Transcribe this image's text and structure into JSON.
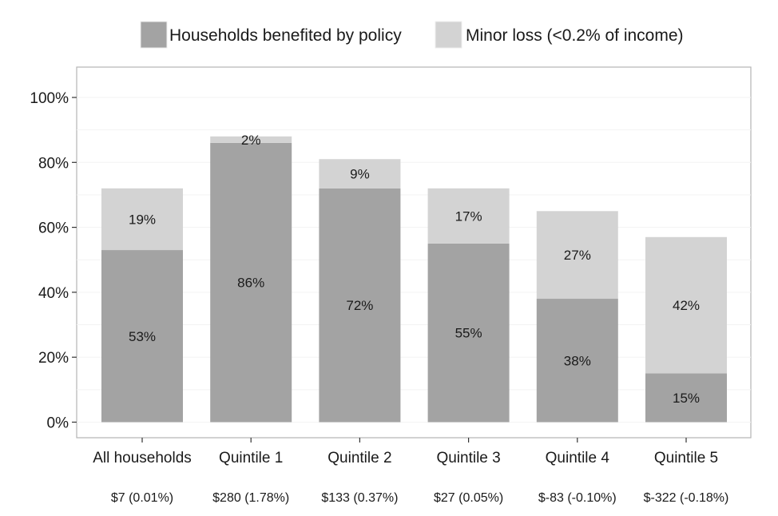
{
  "chart_data": {
    "type": "bar",
    "stacked": true,
    "categories": [
      "All households",
      "Quintile 1",
      "Quintile 2",
      "Quintile 3",
      "Quintile 4",
      "Quintile 5"
    ],
    "subtitles": [
      "$7 (0.01%)",
      "$280 (1.78%)",
      "$133 (0.37%)",
      "$27 (0.05%)",
      "$-83 (-0.10%)",
      "$-322 (-0.18%)"
    ],
    "series": [
      {
        "name": "Households benefited by policy",
        "color": "#a3a3a3",
        "values": [
          53,
          86,
          72,
          55,
          38,
          15
        ],
        "labels": [
          "53%",
          "86%",
          "72%",
          "55%",
          "38%",
          "15%"
        ]
      },
      {
        "name": "Minor loss (<0.2% of income)",
        "color": "#d3d3d3",
        "values": [
          19,
          2,
          9,
          17,
          27,
          42
        ],
        "labels": [
          "19%",
          "2%",
          "9%",
          "17%",
          "27%",
          "42%"
        ]
      }
    ],
    "ylim": [
      0,
      100
    ],
    "yticks": [
      0,
      20,
      40,
      60,
      80,
      100
    ],
    "ytick_labels": [
      "0%",
      "20%",
      "40%",
      "60%",
      "80%",
      "100%"
    ],
    "legend_position": "top",
    "grid": true
  }
}
